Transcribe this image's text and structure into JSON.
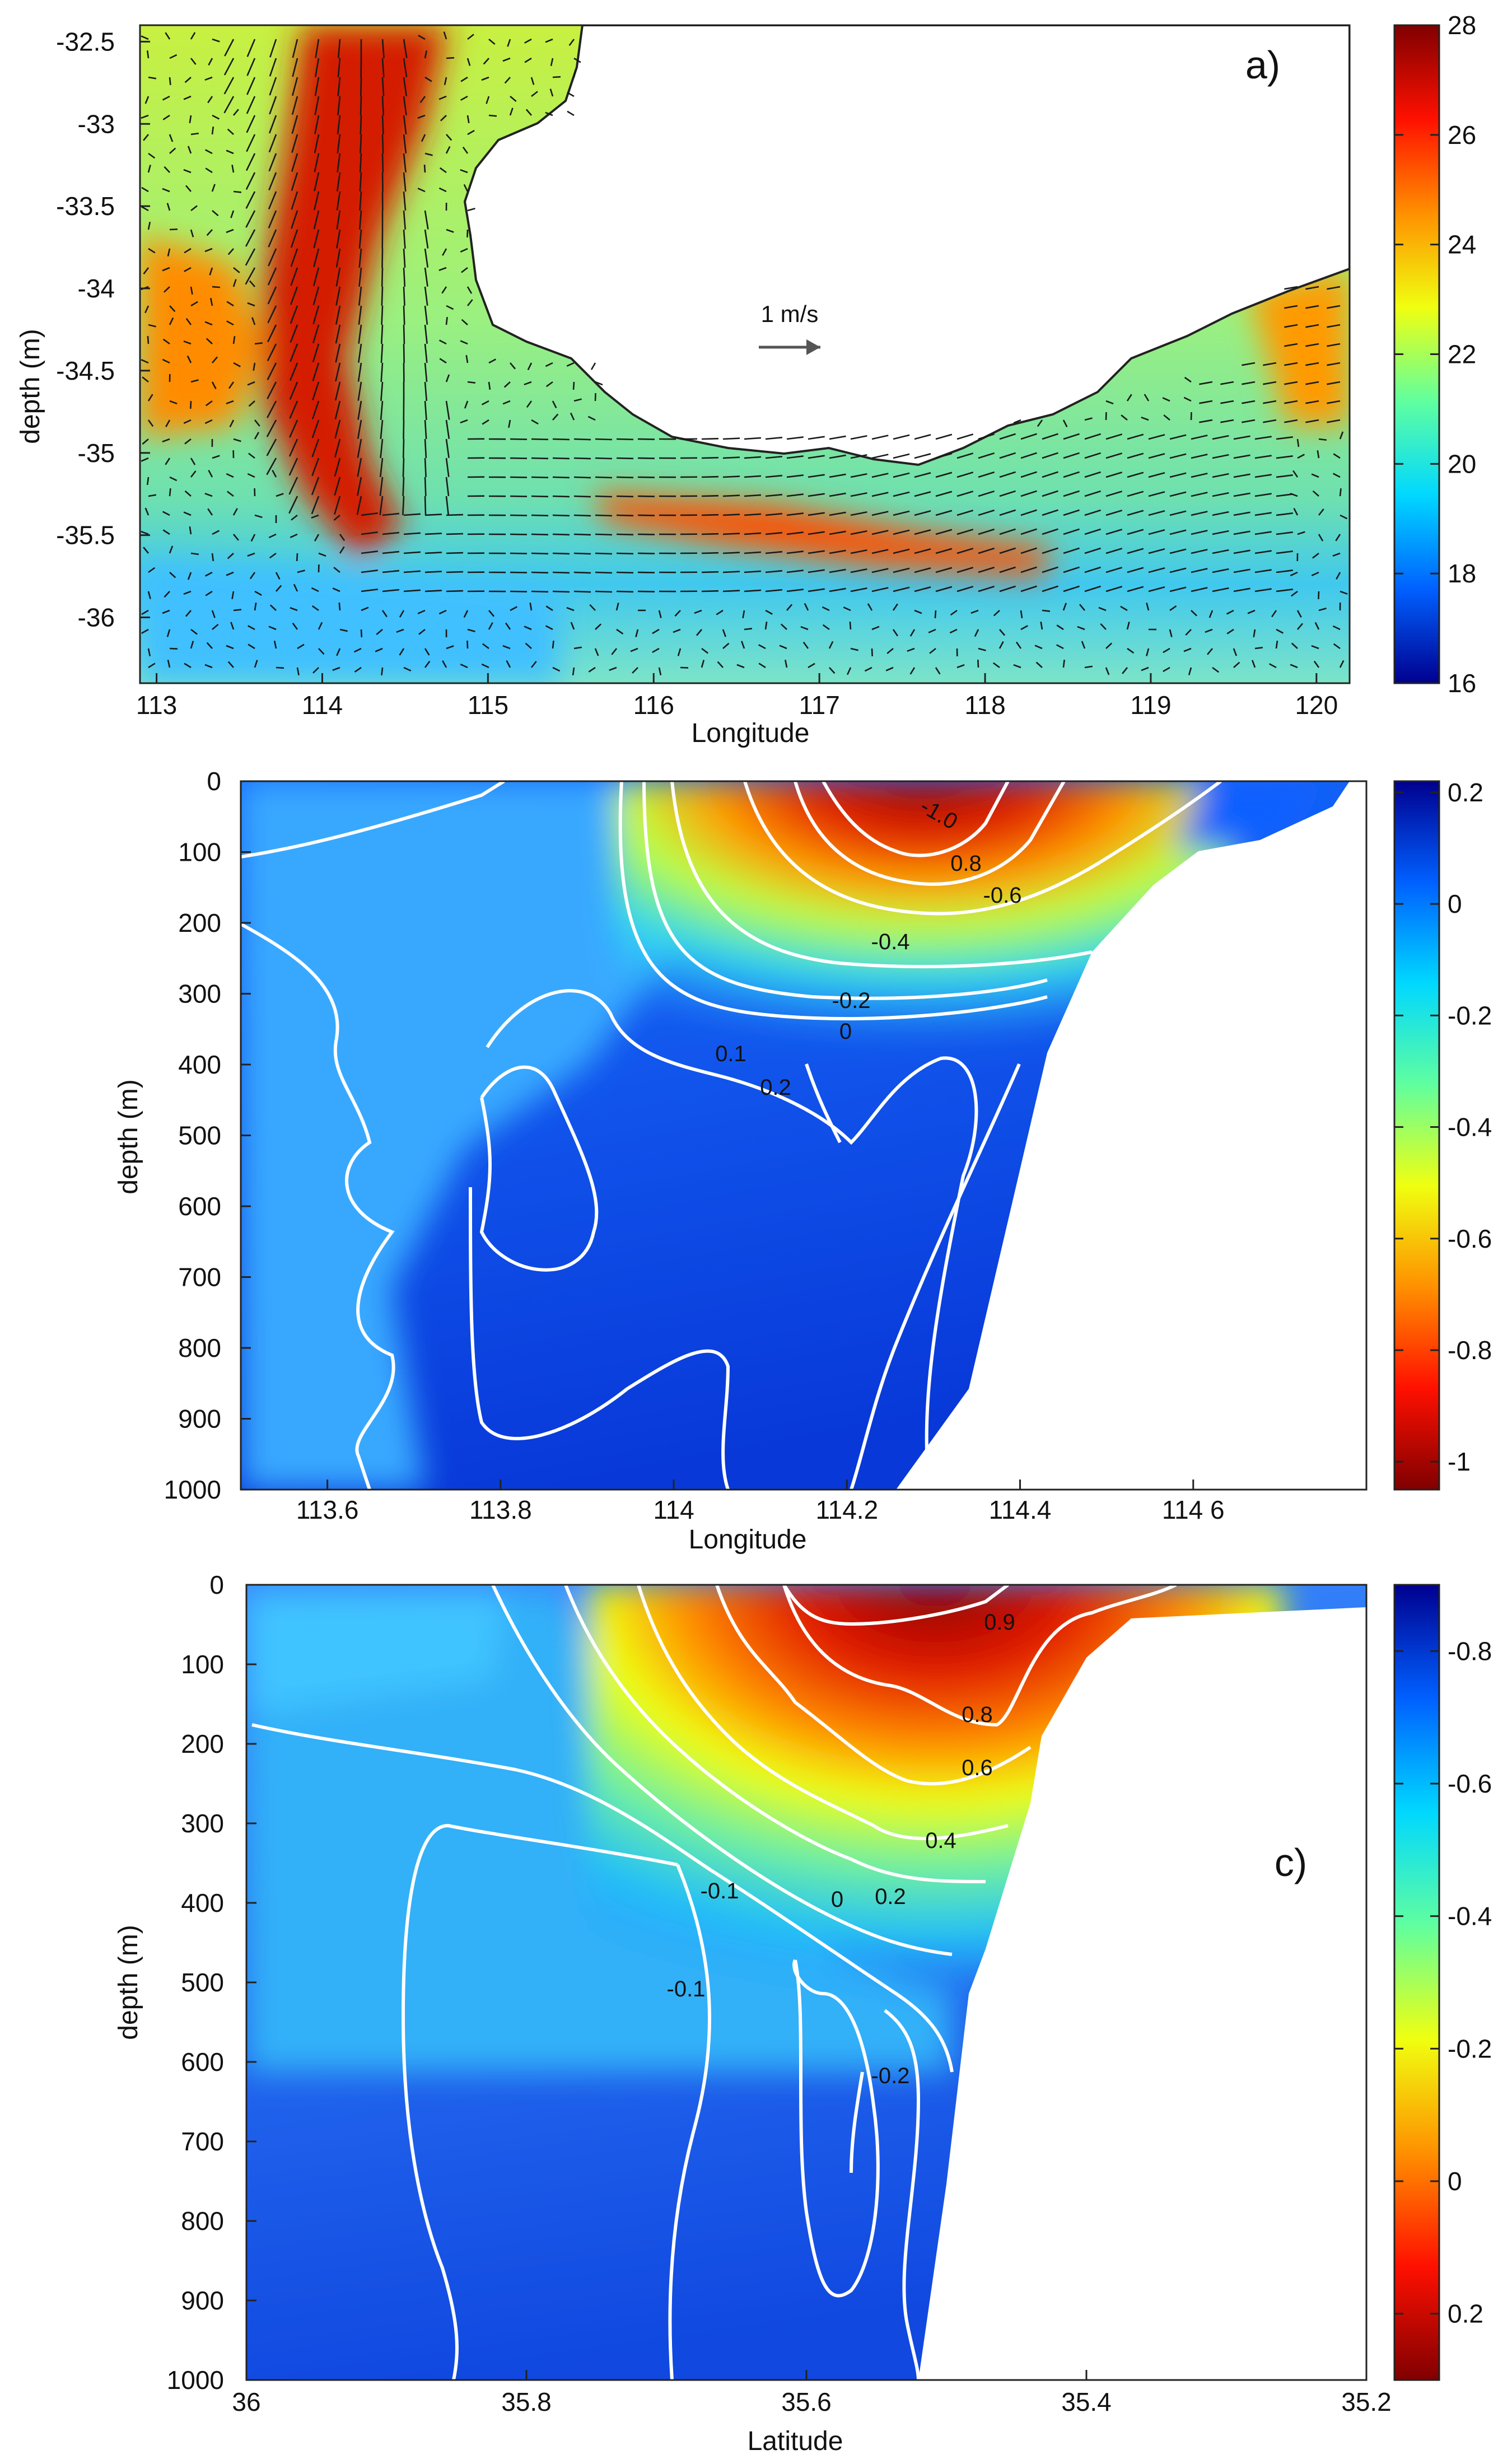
{
  "chart_data": [
    {
      "type": "heatmap",
      "panel_label": "a)",
      "xlabel": "Longitude",
      "ylabel": "depth (m)",
      "xlim": [
        112.9,
        120.2
      ],
      "ylim": [
        -36.4,
        -32.4
      ],
      "xticks": [
        "113",
        "114",
        "115",
        "116",
        "117",
        "118",
        "119",
        "120"
      ],
      "yticks": [
        "-32.5",
        "-33",
        "-33.5",
        "-34",
        "-34.5",
        "-35",
        "-35.5",
        "-36"
      ],
      "colorbar": {
        "ticks": [
          "28",
          "26",
          "24",
          "22",
          "20",
          "18",
          "16"
        ],
        "range": [
          16,
          28
        ],
        "colors": [
          "#00008f",
          "#0060ff",
          "#00d8ff",
          "#60ff9f",
          "#f0ff10",
          "#ff9000",
          "#ff1000",
          "#800000"
        ]
      },
      "reference_arrow": "1 m/s",
      "grid": false
    },
    {
      "type": "heatmap",
      "panel_label": "",
      "xlabel": "Longitude",
      "ylabel": "depth (m)",
      "xlim": [
        113.5,
        114.8
      ],
      "ylim": [
        1000,
        0
      ],
      "xticks": [
        "113.6",
        "113.8",
        "114",
        "114.2",
        "114.4",
        "114 6"
      ],
      "yticks": [
        "0",
        "100",
        "200",
        "300",
        "400",
        "500",
        "600",
        "700",
        "800",
        "900",
        "1000"
      ],
      "colorbar": {
        "ticks": [
          "0.2",
          "0",
          "-0.2",
          "-0.4",
          "-0.6",
          "-0.8",
          "-1"
        ],
        "range": [
          -1.05,
          0.22
        ],
        "colors": [
          "#800000",
          "#ff1000",
          "#ff9000",
          "#f0ff10",
          "#60ff9f",
          "#00d8ff",
          "#0060ff",
          "#00008f"
        ]
      },
      "contour_labels": [
        "-1.0",
        "0.8",
        "-0.6",
        "-0.4",
        "-0.2",
        "0",
        "0.1",
        "0.2"
      ],
      "grid": false
    },
    {
      "type": "heatmap",
      "panel_label": "c)",
      "xlabel": "Latitude",
      "ylabel": "depth (m)",
      "xlim": [
        36,
        35.2
      ],
      "ylim": [
        1000,
        0
      ],
      "xticks": [
        "36",
        "35.8",
        "35.6",
        "35.4",
        "35.2"
      ],
      "yticks": [
        "0",
        "100",
        "200",
        "300",
        "400",
        "500",
        "600",
        "700",
        "800",
        "900",
        "1000"
      ],
      "colorbar": {
        "ticks": [
          "-0.8",
          "-0.6",
          "-0.4",
          "-0.2",
          "0",
          "0.2"
        ],
        "range": [
          -0.9,
          0.3
        ],
        "colors": [
          "#800000",
          "#ff1000",
          "#ff9000",
          "#f0ff10",
          "#60ff9f",
          "#00d8ff",
          "#0060ff",
          "#00008f"
        ]
      },
      "contour_labels": [
        "0.9",
        "0.8",
        "0.6",
        "0.4",
        "0.2",
        "0",
        "-0.1",
        "-0.1",
        "-0.2"
      ],
      "grid": false
    }
  ]
}
